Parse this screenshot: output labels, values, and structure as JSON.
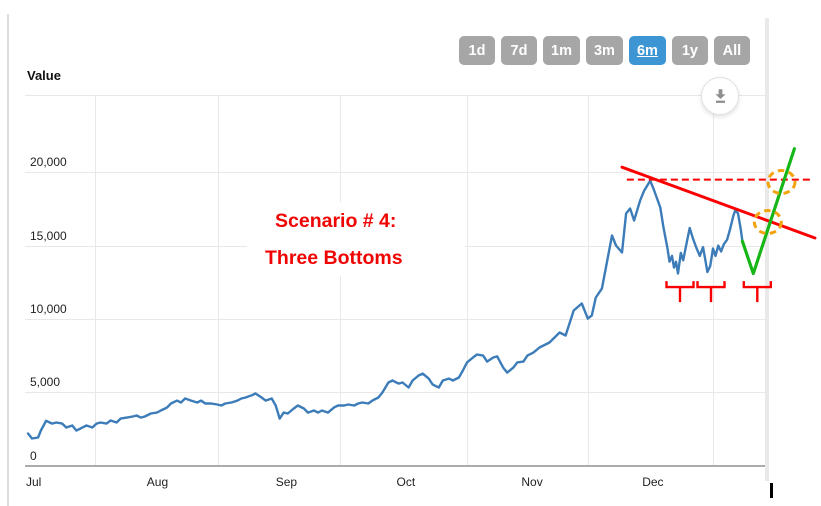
{
  "toolbar": {
    "ranges": [
      {
        "label": "1d",
        "active": false
      },
      {
        "label": "7d",
        "active": false
      },
      {
        "label": "1m",
        "active": false
      },
      {
        "label": "3m",
        "active": false
      },
      {
        "label": "6m",
        "active": true
      },
      {
        "label": "1y",
        "active": false
      },
      {
        "label": "All",
        "active": false
      }
    ],
    "active_color": "#3d95d4",
    "inactive_color": "#a6a6a6",
    "download_icon": "download-arrow"
  },
  "chart": {
    "value_label": "Value"
  },
  "chart_data": {
    "type": "line",
    "title": "",
    "ylabel": "Value",
    "ylim": [
      0,
      25000
    ],
    "x_range_days": [
      0,
      183
    ],
    "grid": true,
    "yticks": [
      {
        "label": "0",
        "value": 0
      },
      {
        "label": "5,000",
        "value": 5000
      },
      {
        "label": "10,000",
        "value": 10000
      },
      {
        "label": "15,000",
        "value": 15000
      },
      {
        "label": "20,000",
        "value": 20000
      }
    ],
    "x_months": [
      {
        "label": "Jul",
        "day": 0
      },
      {
        "label": "Aug",
        "day": 30
      },
      {
        "label": "Sep",
        "day": 62
      },
      {
        "label": "Oct",
        "day": 92
      },
      {
        "label": "Nov",
        "day": 123
      },
      {
        "label": "Dec",
        "day": 153
      }
    ],
    "vgrid_days": [
      16.6,
      47.2,
      77.5,
      109,
      139,
      170.1
    ],
    "series": [
      {
        "name": "price",
        "color": "#3c7cb8",
        "points": [
          [
            0,
            2180
          ],
          [
            1,
            1840
          ],
          [
            2.5,
            1910
          ],
          [
            3.2,
            2390
          ],
          [
            4.5,
            3050
          ],
          [
            6,
            2860
          ],
          [
            7,
            2930
          ],
          [
            8.5,
            2860
          ],
          [
            9.5,
            2590
          ],
          [
            11,
            2730
          ],
          [
            12,
            2390
          ],
          [
            13,
            2520
          ],
          [
            14.5,
            2730
          ],
          [
            16,
            2590
          ],
          [
            17,
            2860
          ],
          [
            18,
            2930
          ],
          [
            19.5,
            2860
          ],
          [
            20.5,
            3070
          ],
          [
            22,
            2930
          ],
          [
            23,
            3200
          ],
          [
            24.5,
            3270
          ],
          [
            26,
            3340
          ],
          [
            27,
            3410
          ],
          [
            28,
            3270
          ],
          [
            29,
            3340
          ],
          [
            30.5,
            3550
          ],
          [
            32,
            3610
          ],
          [
            33,
            3750
          ],
          [
            34.5,
            3950
          ],
          [
            35.5,
            4230
          ],
          [
            37,
            4430
          ],
          [
            38,
            4300
          ],
          [
            39,
            4570
          ],
          [
            40.5,
            4430
          ],
          [
            42,
            4300
          ],
          [
            43,
            4430
          ],
          [
            44,
            4230
          ],
          [
            45.5,
            4230
          ],
          [
            47,
            4160
          ],
          [
            48,
            4090
          ],
          [
            49,
            4230
          ],
          [
            50.5,
            4300
          ],
          [
            52,
            4430
          ],
          [
            53,
            4570
          ],
          [
            54,
            4640
          ],
          [
            55.5,
            4780
          ],
          [
            56.5,
            4910
          ],
          [
            58,
            4640
          ],
          [
            59,
            4430
          ],
          [
            60.5,
            4570
          ],
          [
            61.5,
            4090
          ],
          [
            62.5,
            3200
          ],
          [
            63.5,
            3610
          ],
          [
            64.5,
            3550
          ],
          [
            66,
            3890
          ],
          [
            67,
            4090
          ],
          [
            68.5,
            3890
          ],
          [
            69.5,
            3610
          ],
          [
            71,
            3750
          ],
          [
            72,
            3610
          ],
          [
            73,
            3750
          ],
          [
            74.5,
            3610
          ],
          [
            76,
            3960
          ],
          [
            77,
            4090
          ],
          [
            78.5,
            4090
          ],
          [
            79.5,
            4160
          ],
          [
            81,
            4090
          ],
          [
            82,
            4230
          ],
          [
            83,
            4300
          ],
          [
            84.5,
            4230
          ],
          [
            85.5,
            4430
          ],
          [
            87,
            4640
          ],
          [
            88,
            4980
          ],
          [
            89.5,
            5660
          ],
          [
            90.5,
            5800
          ],
          [
            92,
            5590
          ],
          [
            93,
            5660
          ],
          [
            94.5,
            5320
          ],
          [
            95.5,
            5800
          ],
          [
            97,
            6140
          ],
          [
            98,
            6270
          ],
          [
            99.5,
            5930
          ],
          [
            100.5,
            5520
          ],
          [
            102,
            5320
          ],
          [
            103,
            5800
          ],
          [
            104.5,
            5930
          ],
          [
            105.5,
            5800
          ],
          [
            107,
            6000
          ],
          [
            108,
            6480
          ],
          [
            109,
            7030
          ],
          [
            110.5,
            7370
          ],
          [
            111.5,
            7570
          ],
          [
            113,
            7500
          ],
          [
            114,
            7090
          ],
          [
            115.5,
            7370
          ],
          [
            116.5,
            7440
          ],
          [
            118,
            6680
          ],
          [
            119,
            6340
          ],
          [
            120.5,
            6680
          ],
          [
            121.5,
            7030
          ],
          [
            123,
            7090
          ],
          [
            124,
            7500
          ],
          [
            125.5,
            7700
          ],
          [
            127,
            8050
          ],
          [
            129.5,
            8390
          ],
          [
            132,
            9070
          ],
          [
            133.5,
            8870
          ],
          [
            135.5,
            10570
          ],
          [
            137.5,
            11050
          ],
          [
            139,
            10020
          ],
          [
            140,
            10230
          ],
          [
            141,
            11460
          ],
          [
            142.5,
            12070
          ],
          [
            143.5,
            13500
          ],
          [
            145,
            15690
          ],
          [
            146,
            15010
          ],
          [
            147.5,
            14530
          ],
          [
            148.5,
            17190
          ],
          [
            149.5,
            17530
          ],
          [
            150.5,
            16710
          ],
          [
            152,
            18070
          ],
          [
            153,
            18750
          ],
          [
            154.5,
            19430
          ],
          [
            155.5,
            18750
          ],
          [
            157,
            17600
          ],
          [
            157.8,
            16230
          ],
          [
            158.8,
            14800
          ],
          [
            159.3,
            13900
          ],
          [
            159.9,
            14300
          ],
          [
            160.4,
            13500
          ],
          [
            160.9,
            13900
          ],
          [
            161.4,
            13100
          ],
          [
            162.1,
            14500
          ],
          [
            162.7,
            14000
          ],
          [
            163.4,
            15000
          ],
          [
            164.3,
            16200
          ],
          [
            165.1,
            15500
          ],
          [
            165.9,
            14900
          ],
          [
            166.8,
            14300
          ],
          [
            167.6,
            14900
          ],
          [
            168.2,
            14000
          ],
          [
            168.7,
            13200
          ],
          [
            169.4,
            13600
          ],
          [
            170.1,
            14800
          ],
          [
            170.7,
            14300
          ],
          [
            171.4,
            15000
          ],
          [
            172.1,
            14600
          ],
          [
            172.8,
            15100
          ],
          [
            173.6,
            15400
          ],
          [
            174.4,
            16200
          ],
          [
            175.1,
            17000
          ],
          [
            175.6,
            17400
          ],
          [
            176.3,
            17200
          ],
          [
            177,
            16100
          ],
          [
            177.4,
            15300
          ]
        ]
      }
    ],
    "annotations": {
      "label": {
        "line1": "Scenario # 4:",
        "line2": "Three Bottoms",
        "color": "#f00505"
      },
      "projection_line": {
        "name": "green-projection",
        "color": "#17b617",
        "points": [
          [
            177.4,
            15300
          ],
          [
            180.1,
            13100
          ],
          [
            190.3,
            21600
          ]
        ]
      },
      "trend_line": {
        "name": "descending-resistance",
        "color": "#fb0000",
        "from": [
          147.5,
          20350
        ],
        "to": [
          195.4,
          15520
        ]
      },
      "resistance_dashed": {
        "name": "peak-level-dashed",
        "color": "#fb0000",
        "value": 19500,
        "from_day": 148.7,
        "to_day": 194.9
      },
      "circles": {
        "color": "#f2a40e",
        "centers": [
          {
            "day": 187.1,
            "value": 19340
          },
          {
            "day": 183.7,
            "value": 16610
          }
        ]
      },
      "bottom_markers": {
        "color": "#fb0000",
        "value": 12170,
        "days": [
          161.9,
          169.6,
          181.1
        ]
      }
    }
  }
}
